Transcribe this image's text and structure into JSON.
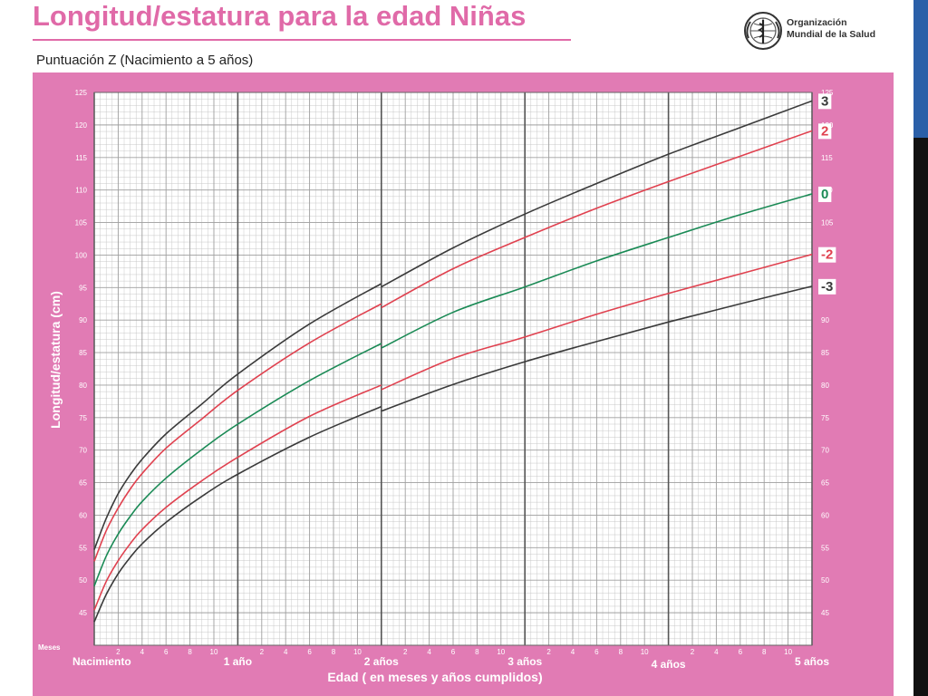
{
  "page": {
    "title": "Longitud/estatura para la edad Niñas",
    "subtitle": "Puntuación Z (Nacimiento a 5 años)",
    "org_line1": "Organización",
    "org_line2": "Mundial de la Salud",
    "logo_icon": "who-emblem-icon"
  },
  "colors": {
    "panel": "#e17bb4",
    "grid_bg": "#ffffff",
    "minor_grid": "#c8c8c8",
    "major_grid": "#555555",
    "z3": "#3a3a3a",
    "z2": "#e0414f",
    "z0": "#1a8a55",
    "title": "#e06aa8"
  },
  "chart_data": {
    "type": "line",
    "title": "Longitud/estatura para la edad Niñas",
    "subtitle": "Puntuación Z (Nacimiento a 5 años)",
    "xlabel": "Edad ( en meses y años cumplidos)",
    "ylabel": "Longitud/estatura (cm)",
    "x_unit_label": "Meses",
    "xlim": [
      0,
      60
    ],
    "ylim": [
      40,
      125
    ],
    "yticks": [
      45,
      50,
      55,
      60,
      65,
      70,
      75,
      80,
      85,
      90,
      95,
      100,
      105,
      110,
      115,
      120,
      125
    ],
    "month_ticks": [
      {
        "m": 2,
        "label": "2"
      },
      {
        "m": 4,
        "label": "4"
      },
      {
        "m": 6,
        "label": "6"
      },
      {
        "m": 8,
        "label": "8"
      },
      {
        "m": 10,
        "label": "10"
      },
      {
        "m": 14,
        "label": "2"
      },
      {
        "m": 16,
        "label": "4"
      },
      {
        "m": 18,
        "label": "6"
      },
      {
        "m": 20,
        "label": "8"
      },
      {
        "m": 22,
        "label": "10"
      },
      {
        "m": 26,
        "label": "2"
      },
      {
        "m": 28,
        "label": "4"
      },
      {
        "m": 30,
        "label": "6"
      },
      {
        "m": 32,
        "label": "8"
      },
      {
        "m": 34,
        "label": "10"
      },
      {
        "m": 38,
        "label": "2"
      },
      {
        "m": 40,
        "label": "4"
      },
      {
        "m": 42,
        "label": "6"
      },
      {
        "m": 44,
        "label": "8"
      },
      {
        "m": 46,
        "label": "10"
      },
      {
        "m": 50,
        "label": "2"
      },
      {
        "m": 52,
        "label": "4"
      },
      {
        "m": 54,
        "label": "6"
      },
      {
        "m": 56,
        "label": "8"
      },
      {
        "m": 58,
        "label": "10"
      }
    ],
    "year_ticks": [
      {
        "m": 0,
        "label": "Nacimiento"
      },
      {
        "m": 12,
        "label": "1 año"
      },
      {
        "m": 24,
        "label": "2 años"
      },
      {
        "m": 36,
        "label": "3 años"
      },
      {
        "m": 48,
        "label": "4 años"
      },
      {
        "m": 60,
        "label": "5 años"
      }
    ],
    "x": [
      0,
      1,
      2,
      3,
      4,
      6,
      9,
      12,
      18,
      24,
      30,
      36,
      42,
      48,
      54,
      60
    ],
    "break_at": 24,
    "series": [
      {
        "name": "3",
        "color_key": "z3",
        "values": [
          54.7,
          59.5,
          63.3,
          66.2,
          68.6,
          72.5,
          77.1,
          81.7,
          89.4,
          95.6,
          101.1,
          106.3,
          111.0,
          115.5,
          119.6,
          123.7
        ],
        "value_at_break_after": 95.1
      },
      {
        "name": "2",
        "color_key": "z2",
        "values": [
          52.9,
          57.6,
          61.1,
          64.0,
          66.4,
          70.3,
          74.8,
          79.2,
          86.5,
          92.5,
          97.9,
          102.7,
          107.2,
          111.3,
          115.2,
          119.1
        ],
        "value_at_break_after": 91.9
      },
      {
        "name": "0",
        "color_key": "z0",
        "values": [
          49.1,
          53.7,
          57.1,
          59.8,
          62.1,
          65.7,
          70.1,
          74.0,
          80.7,
          86.4,
          91.2,
          95.1,
          99.1,
          102.7,
          106.2,
          109.4
        ],
        "value_at_break_after": 85.7
      },
      {
        "name": "-2",
        "color_key": "z2",
        "values": [
          45.4,
          49.8,
          53.0,
          55.6,
          57.8,
          61.2,
          65.3,
          68.9,
          75.2,
          80.0,
          84.1,
          87.4,
          90.9,
          94.1,
          97.1,
          100.1
        ],
        "value_at_break_after": 79.3
      },
      {
        "name": "-3",
        "color_key": "z3",
        "values": [
          43.6,
          47.8,
          51.0,
          53.5,
          55.6,
          58.9,
          62.9,
          66.3,
          72.0,
          76.7,
          80.1,
          83.6,
          86.7,
          89.7,
          92.5,
          95.2
        ],
        "value_at_break_after": 76.0
      }
    ]
  }
}
